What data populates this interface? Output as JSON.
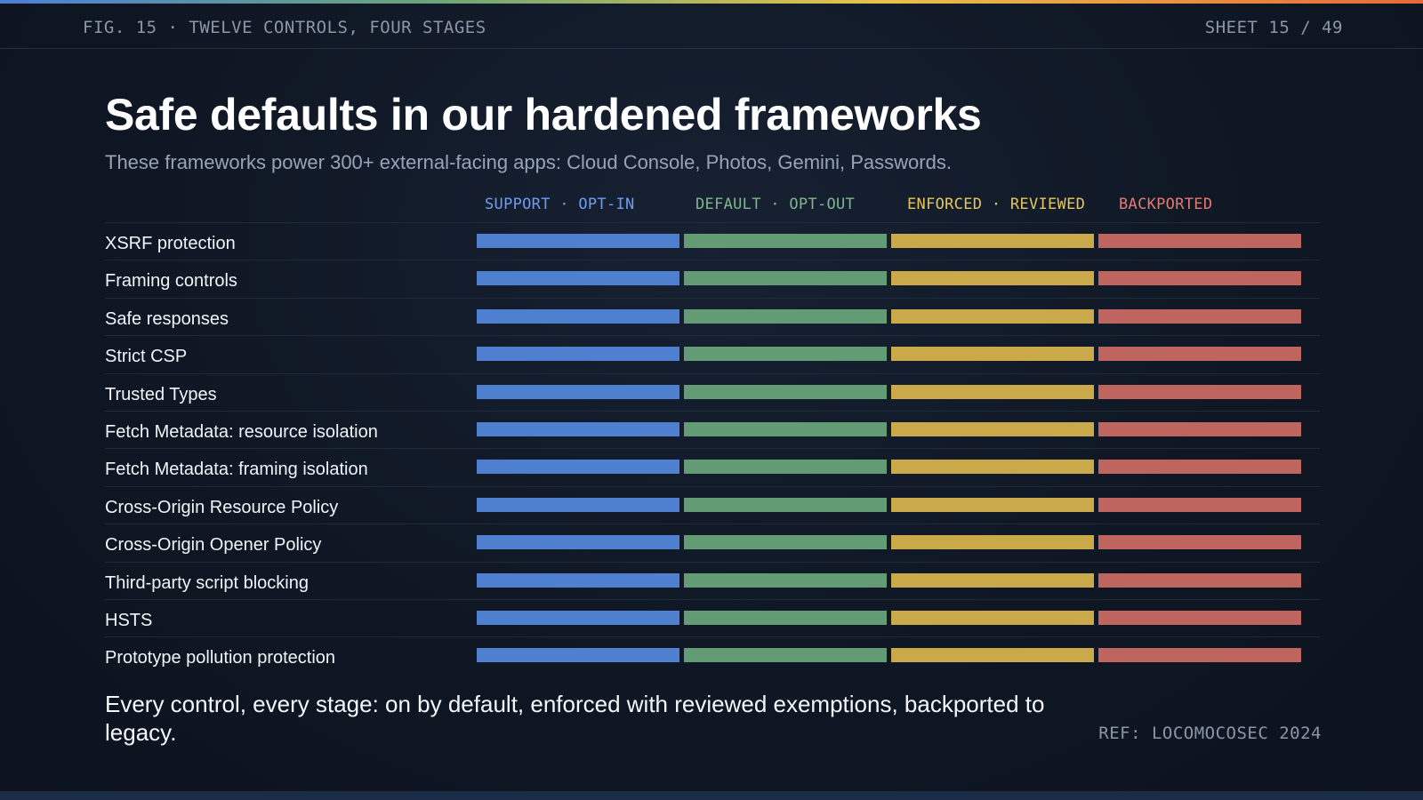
{
  "header": {
    "fig_label": "FIG. 15 · TWELVE CONTROLS, FOUR STAGES",
    "sheet_label": "SHEET 15 / 49"
  },
  "title": "Safe defaults in our hardened frameworks",
  "subtitle": "These frameworks power 300+ external-facing apps: Cloud Console, Photos, Gemini, Passwords.",
  "stages": [
    {
      "label": "SUPPORT · OPT-IN",
      "color": "#4f7fcf"
    },
    {
      "label": "DEFAULT · OPT-OUT",
      "color": "#639c74"
    },
    {
      "label": "ENFORCED · REVIEWED",
      "color": "#c9a94a"
    },
    {
      "label": "BACKPORTED",
      "color": "#bf6560"
    }
  ],
  "stage_text_colors": [
    "#6f9cf0",
    "#7fb58f",
    "#e6c65a",
    "#e27a72"
  ],
  "controls": [
    "XSRF protection",
    "Framing controls",
    "Safe responses",
    "Strict CSP",
    "Trusted Types",
    "Fetch Metadata: resource isolation",
    "Fetch Metadata: framing isolation",
    "Cross-Origin Resource Policy",
    "Cross-Origin Opener Policy",
    "Third-party script blocking",
    "HSTS",
    "Prototype pollution protection"
  ],
  "footer_note": "Every control, every stage: on by default, enforced with reviewed exemptions, backported to legacy.",
  "ref": "REF: LOCOMOCOSEC 2024"
}
